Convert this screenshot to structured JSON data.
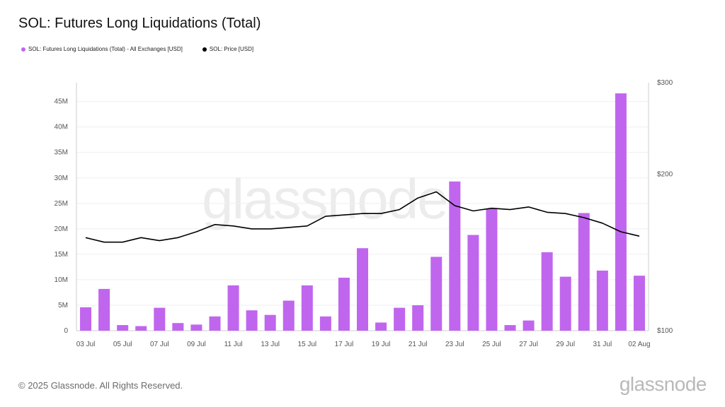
{
  "header": {
    "title": "SOL: Futures Long Liquidations (Total)"
  },
  "legend": {
    "items": [
      {
        "label": "SOL: Futures Long Liquidations (Total) - All Exchanges [USD]",
        "color": "#c066ee"
      },
      {
        "label": "SOL: Price [USD]",
        "color": "#000000"
      }
    ]
  },
  "watermark": "glassnode",
  "footer": {
    "copyright": "© 2025 Glassnode. All Rights Reserved.",
    "logo": "glassnode"
  },
  "chart_data": {
    "type": "bar+line",
    "x": [
      "03 Jul",
      "04 Jul",
      "05 Jul",
      "06 Jul",
      "07 Jul",
      "08 Jul",
      "09 Jul",
      "10 Jul",
      "11 Jul",
      "12 Jul",
      "13 Jul",
      "14 Jul",
      "15 Jul",
      "16 Jul",
      "17 Jul",
      "18 Jul",
      "19 Jul",
      "20 Jul",
      "21 Jul",
      "22 Jul",
      "23 Jul",
      "24 Jul",
      "25 Jul",
      "26 Jul",
      "27 Jul",
      "28 Jul",
      "29 Jul",
      "30 Jul",
      "31 Jul",
      "01 Aug",
      "02 Aug"
    ],
    "x_tick_labels": [
      "03 Jul",
      "05 Jul",
      "07 Jul",
      "09 Jul",
      "11 Jul",
      "13 Jul",
      "15 Jul",
      "17 Jul",
      "19 Jul",
      "21 Jul",
      "23 Jul",
      "25 Jul",
      "27 Jul",
      "29 Jul",
      "31 Jul",
      "02 Aug"
    ],
    "series": [
      {
        "name": "SOL: Futures Long Liquidations (Total) - All Exchanges [USD]",
        "type": "bar",
        "axis": "left",
        "color": "#c066ee",
        "values": [
          4600000,
          8200000,
          1100000,
          900000,
          4500000,
          1500000,
          1200000,
          2800000,
          8900000,
          4000000,
          3100000,
          5900000,
          8900000,
          2800000,
          10400000,
          16200000,
          1600000,
          4500000,
          5000000,
          14500000,
          29300000,
          18800000,
          24000000,
          1100000,
          2000000,
          15400000,
          10600000,
          23100000,
          11800000,
          46600000,
          10800000
        ]
      },
      {
        "name": "SOL: Price [USD]",
        "type": "line",
        "axis": "right",
        "color": "#000000",
        "values": [
          151,
          148,
          148,
          151,
          149,
          151,
          155,
          160,
          159,
          157,
          157,
          158,
          159,
          166,
          167,
          168,
          168,
          171,
          180,
          185,
          174,
          170,
          172,
          171,
          173,
          169,
          168,
          165,
          161,
          155,
          152
        ]
      }
    ],
    "y_left": {
      "ticks": [
        0,
        5000000,
        10000000,
        15000000,
        20000000,
        25000000,
        30000000,
        35000000,
        40000000,
        45000000
      ],
      "tick_labels": [
        "0",
        "5M",
        "10M",
        "15M",
        "20M",
        "25M",
        "30M",
        "35M",
        "40M",
        "45M"
      ],
      "range": [
        0,
        48700000
      ]
    },
    "y_right": {
      "scale": "log",
      "range": [
        100,
        300
      ],
      "ticks": [
        100,
        200,
        300
      ],
      "tick_labels": [
        "$100",
        "$200",
        "$300"
      ]
    },
    "grid": true
  }
}
